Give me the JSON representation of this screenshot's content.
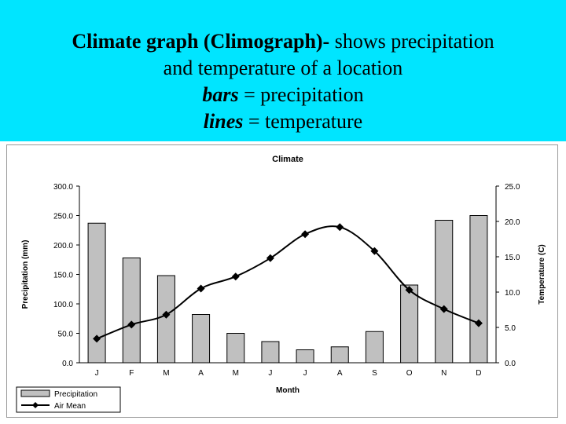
{
  "banner": {
    "line1_bold": "Climate graph (Climograph)-",
    "line1_rest": " shows  precipitation",
    "line2": "and temperature of a location",
    "line3_term": "bars",
    "line3_rest": " = precipitation",
    "line4_term": "lines",
    "line4_rest": " = temperature",
    "background_color": "#00e5ff"
  },
  "chart_data": {
    "type": "bar+line",
    "title": "Climate",
    "xlabel": "Month",
    "ylabel_left": "Precipitation (mm)",
    "ylabel_right": "Temperature (C)",
    "categories": [
      "J",
      "F",
      "M",
      "A",
      "M",
      "J",
      "J",
      "A",
      "S",
      "O",
      "N",
      "D"
    ],
    "ylim_left": [
      0,
      300
    ],
    "ylim_right": [
      0,
      25
    ],
    "yticks_left": [
      "0.0",
      "50.0",
      "100.0",
      "150.0",
      "200.0",
      "250.0",
      "300.0"
    ],
    "yticks_right": [
      "0.0",
      "5.0",
      "10.0",
      "15.0",
      "20.0",
      "25.0"
    ],
    "grid": false,
    "legend_position": "bottom-left",
    "series": [
      {
        "name": "Precipitation",
        "kind": "bar",
        "axis": "left",
        "color": "#c0c0c0",
        "values": [
          237,
          178,
          148,
          82,
          50,
          36,
          22,
          27,
          53,
          132,
          242,
          250
        ]
      },
      {
        "name": "Air Mean",
        "kind": "line",
        "axis": "right",
        "color": "#000000",
        "values": [
          3.4,
          5.4,
          6.8,
          10.5,
          12.2,
          14.8,
          18.2,
          19.2,
          15.8,
          10.3,
          7.6,
          5.6
        ]
      }
    ]
  }
}
